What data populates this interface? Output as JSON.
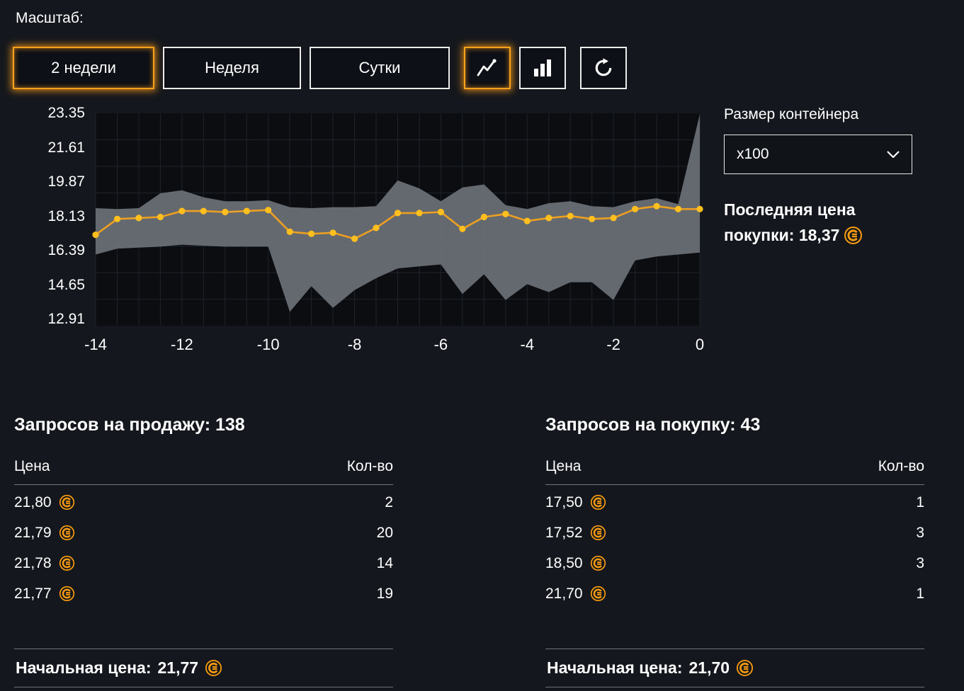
{
  "toolbar": {
    "scale_label": "Масштаб:",
    "buttons": [
      {
        "label": "2 недели",
        "selected": true
      },
      {
        "label": "Неделя",
        "selected": false
      },
      {
        "label": "Сутки",
        "selected": false
      }
    ],
    "view_toggles": [
      {
        "icon": "line-chart-icon",
        "selected": true
      },
      {
        "icon": "bar-chart-icon",
        "selected": false
      }
    ],
    "refresh_icon": "refresh-icon"
  },
  "container_size": {
    "label": "Размер контейнера",
    "value": "x100"
  },
  "last_buy_price": {
    "label": "Последняя цена покупки:",
    "value": "18,37",
    "currency_icon": "coin-icon"
  },
  "sell_orders": {
    "title": "Запросов на продажу: 138",
    "col_price": "Цена",
    "col_qty": "Кол-во",
    "rows": [
      {
        "price": "21,80",
        "qty": "2"
      },
      {
        "price": "21,79",
        "qty": "20"
      },
      {
        "price": "21,78",
        "qty": "14"
      },
      {
        "price": "21,77",
        "qty": "19"
      }
    ],
    "start_price_label": "Начальная цена:",
    "start_price": "21,77"
  },
  "buy_orders": {
    "title": "Запросов на покупку: 43",
    "col_price": "Цена",
    "col_qty": "Кол-во",
    "rows": [
      {
        "price": "17,50",
        "qty": "1"
      },
      {
        "price": "17,52",
        "qty": "3"
      },
      {
        "price": "18,50",
        "qty": "3"
      },
      {
        "price": "21,70",
        "qty": "1"
      }
    ],
    "start_price_label": "Начальная цена:",
    "start_price": "21,70"
  },
  "colors": {
    "accent": "#f7a21d",
    "coin": "#f59a10",
    "line": "#ed9f21",
    "dot": "#ffbf1f",
    "band": "#6d7177",
    "background": "#14171d",
    "chart_bg": "#0b0d11"
  },
  "chart_data": {
    "type": "line",
    "title": "",
    "xlabel": "",
    "ylabel": "",
    "xlim": [
      -14,
      0
    ],
    "ylim": [
      12.6,
      23.35
    ],
    "xticks": [
      -14,
      -12,
      -10,
      -8,
      -6,
      -4,
      -2,
      0
    ],
    "yticks": [
      23.35,
      21.61,
      19.87,
      18.13,
      16.39,
      14.65,
      12.91
    ],
    "grid": true,
    "legend": false,
    "x": [
      -14,
      -13.5,
      -13,
      -12.5,
      -12,
      -11.5,
      -11,
      -10.5,
      -10,
      -9.5,
      -9,
      -8.5,
      -8,
      -7.5,
      -7,
      -6.5,
      -6,
      -5.5,
      -5,
      -4.5,
      -4,
      -3.5,
      -3,
      -2.5,
      -2,
      -1.5,
      -1,
      -0.5,
      0
    ],
    "series": [
      {
        "name": "avg-price",
        "values": [
          17.2,
          18.0,
          18.05,
          18.1,
          18.4,
          18.4,
          18.35,
          18.4,
          18.45,
          17.35,
          17.25,
          17.3,
          17.0,
          17.55,
          18.3,
          18.3,
          18.35,
          17.5,
          18.1,
          18.25,
          17.9,
          18.05,
          18.15,
          18.0,
          18.05,
          18.5,
          18.65,
          18.5,
          18.5
        ]
      },
      {
        "name": "max-price",
        "values": [
          18.55,
          18.5,
          18.55,
          19.3,
          19.45,
          19.1,
          18.9,
          18.9,
          18.95,
          18.6,
          18.55,
          18.6,
          18.6,
          18.65,
          19.95,
          19.55,
          18.9,
          19.6,
          19.75,
          18.7,
          18.5,
          18.8,
          18.9,
          18.65,
          18.6,
          18.9,
          19.05,
          18.75,
          23.3
        ]
      },
      {
        "name": "min-price",
        "values": [
          16.2,
          16.5,
          16.55,
          16.6,
          16.7,
          16.65,
          16.6,
          16.6,
          16.6,
          13.3,
          14.6,
          13.5,
          14.4,
          15.0,
          15.5,
          15.6,
          15.7,
          14.2,
          15.2,
          13.9,
          14.7,
          14.3,
          14.8,
          14.8,
          13.9,
          15.9,
          16.1,
          16.2,
          16.3
        ]
      }
    ],
    "band": {
      "upper": "max-price",
      "lower": "min-price"
    }
  }
}
